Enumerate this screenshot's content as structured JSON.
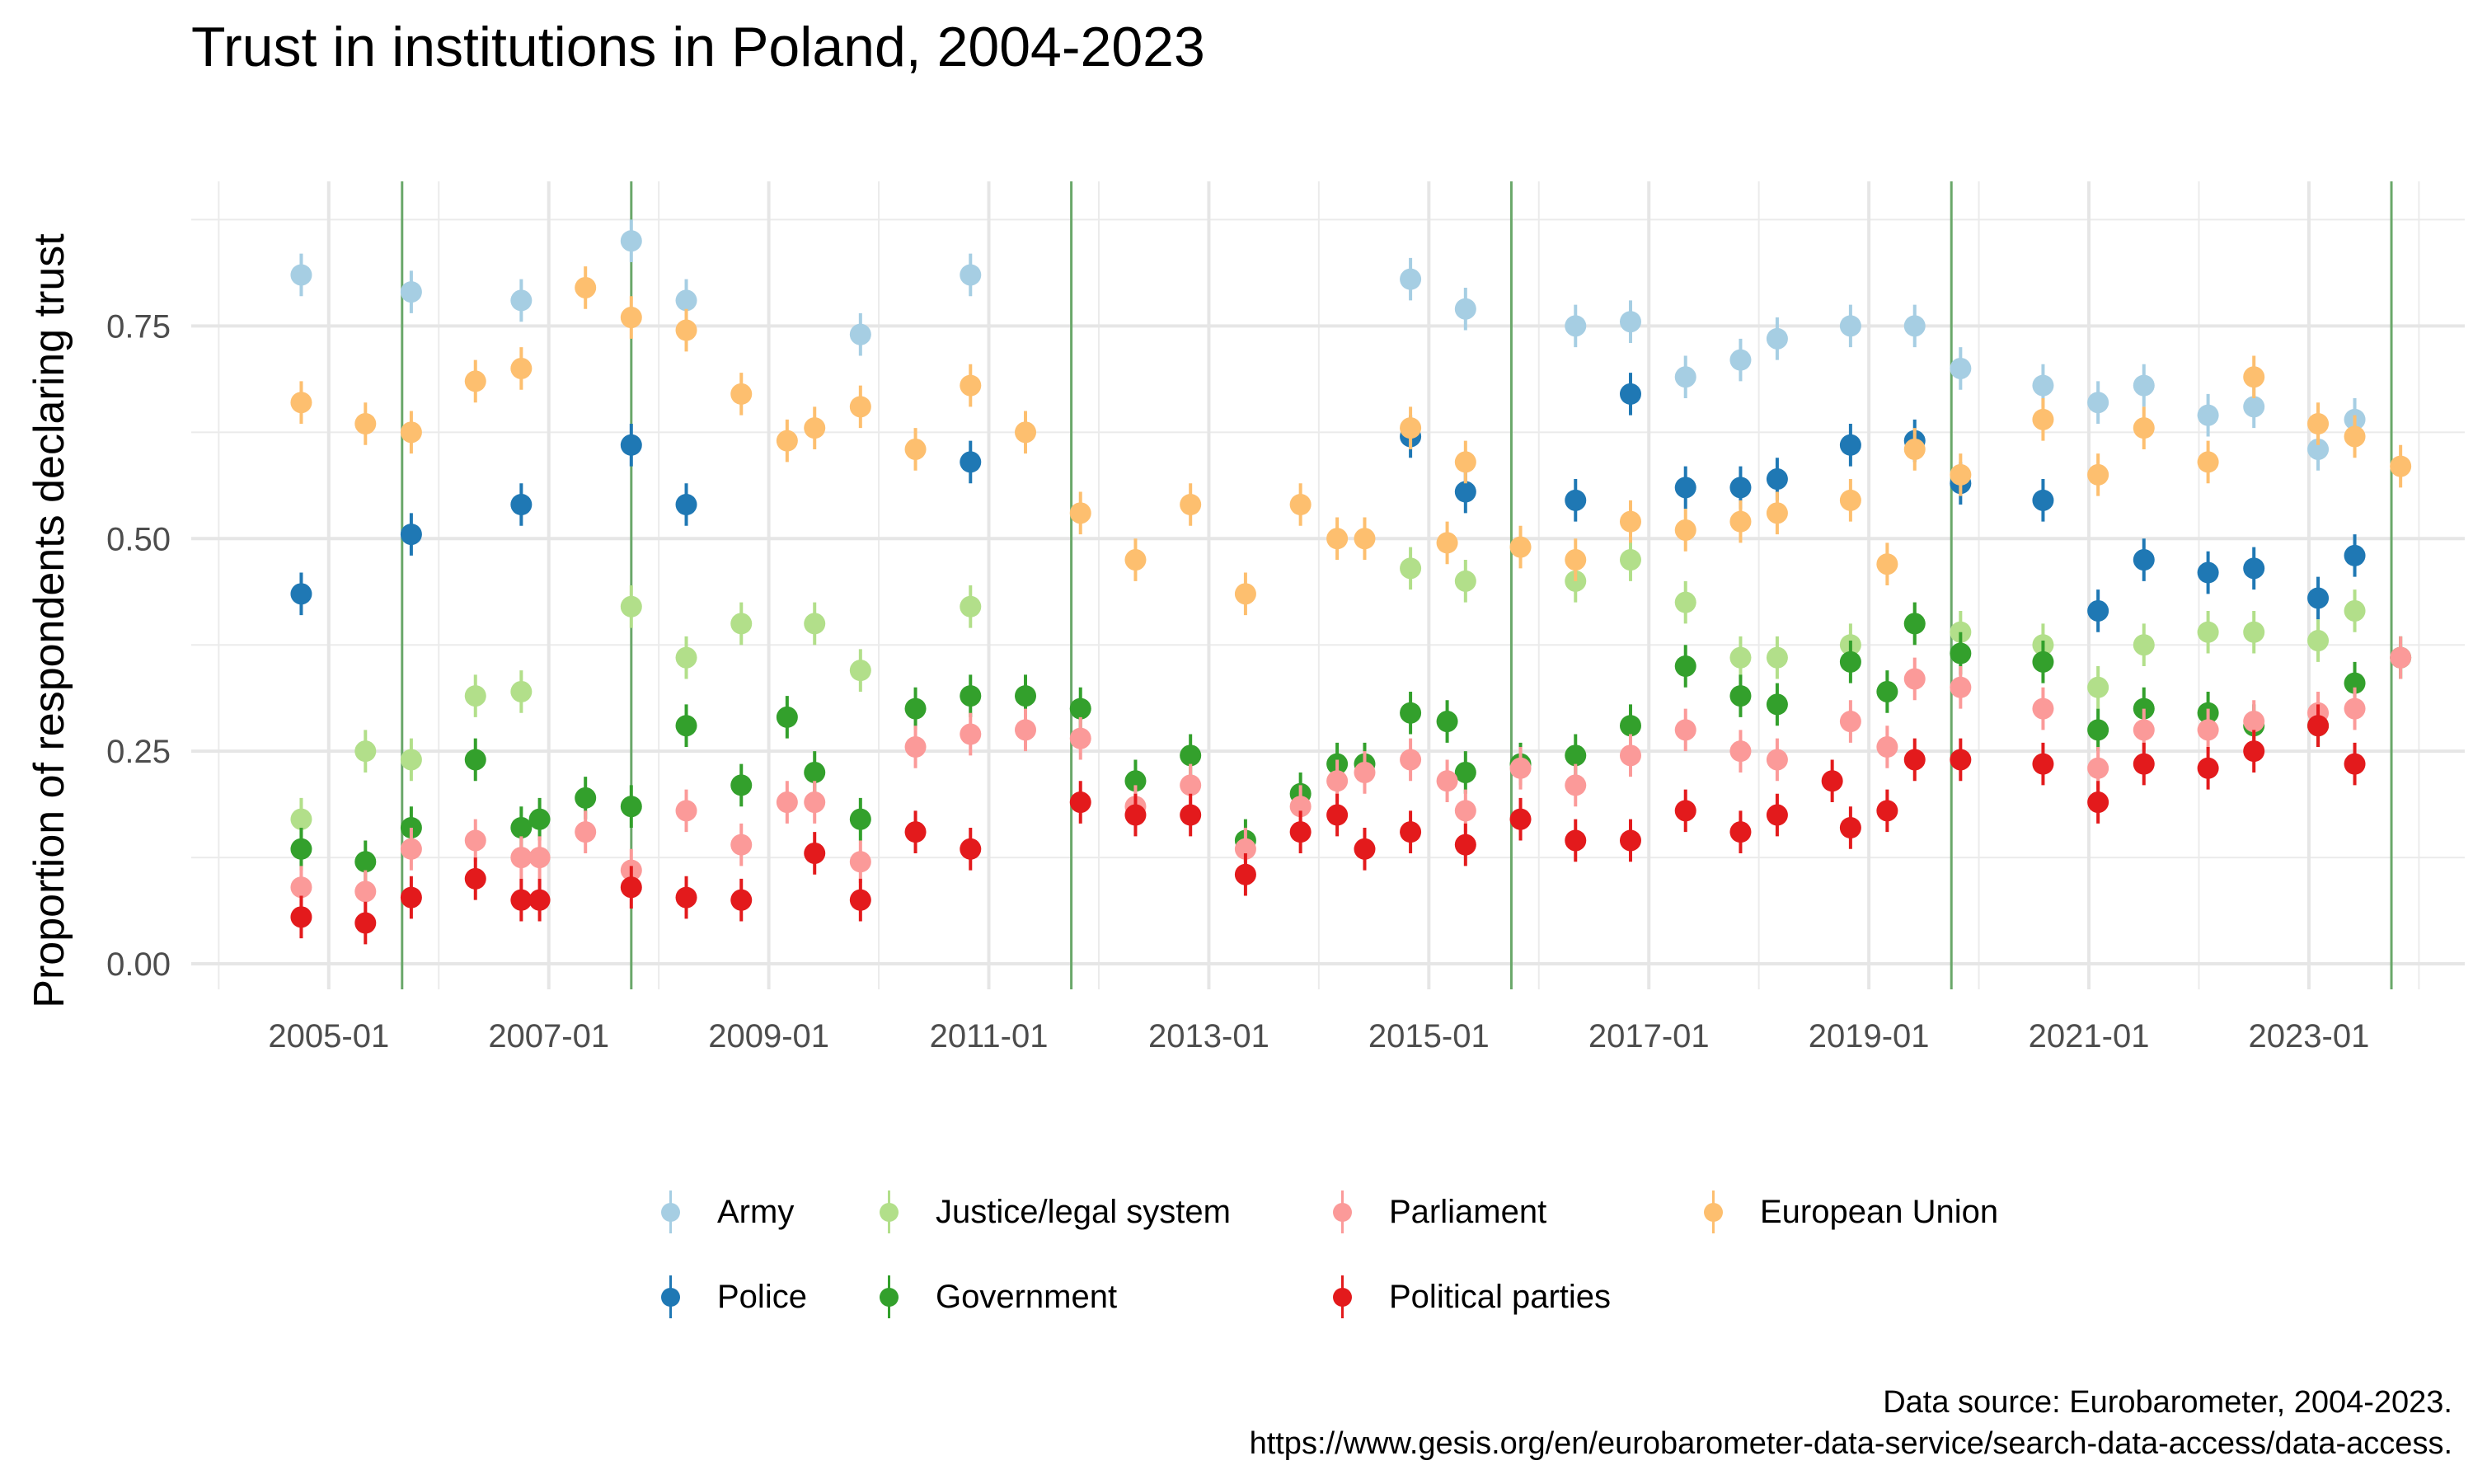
{
  "title": "Trust in institutions in Poland, 2004-2023",
  "caption": {
    "line1": "Data source: Eurobarometer, 2004-2023.",
    "line2": "https://www.gesis.org/en/eurobarometer-data-service/search-data-access/data-access."
  },
  "chart_data": {
    "type": "scatter",
    "title": "Trust in institutions in Poland, 2004-2023",
    "xlabel": "",
    "ylabel": "Proportion of respondents declaring trust",
    "x_ticks": [
      "2005-01",
      "2007-01",
      "2009-01",
      "2011-01",
      "2013-01",
      "2015-01",
      "2017-01",
      "2019-01",
      "2021-01",
      "2023-01"
    ],
    "y_ticks": [
      "0.00",
      "0.25",
      "0.50",
      "0.75"
    ],
    "ylim": [
      -0.03,
      0.92
    ],
    "xlim": [
      "2003-10",
      "2024-06"
    ],
    "grid": true,
    "legend_position": "bottom",
    "error_bars": "vertical, approx. ±0.025",
    "vertical_lines": [
      "2005-09",
      "2007-10",
      "2011-10",
      "2015-10",
      "2019-10",
      "2023-10"
    ],
    "series": [
      {
        "name": "Army",
        "color": "#a6cee3",
        "points": [
          [
            "2004-10",
            0.81
          ],
          [
            "2005-10",
            0.79
          ],
          [
            "2006-10",
            0.78
          ],
          [
            "2007-10",
            0.85
          ],
          [
            "2008-04",
            0.78
          ],
          [
            "2009-11",
            0.74
          ],
          [
            "2010-11",
            0.81
          ],
          [
            "2014-11",
            0.805
          ],
          [
            "2015-05",
            0.77
          ],
          [
            "2016-05",
            0.75
          ],
          [
            "2016-11",
            0.755
          ],
          [
            "2017-05",
            0.69
          ],
          [
            "2017-11",
            0.71
          ],
          [
            "2018-03",
            0.735
          ],
          [
            "2018-11",
            0.75
          ],
          [
            "2019-06",
            0.75
          ],
          [
            "2019-11",
            0.7
          ],
          [
            "2020-08",
            0.68
          ],
          [
            "2021-02",
            0.66
          ],
          [
            "2021-07",
            0.68
          ],
          [
            "2022-02",
            0.645
          ],
          [
            "2022-07",
            0.655
          ],
          [
            "2023-02",
            0.605
          ],
          [
            "2023-06",
            0.64
          ]
        ]
      },
      {
        "name": "Police",
        "color": "#1f78b4",
        "points": [
          [
            "2004-10",
            0.435
          ],
          [
            "2005-10",
            0.505
          ],
          [
            "2006-10",
            0.54
          ],
          [
            "2007-10",
            0.61
          ],
          [
            "2008-04",
            0.54
          ],
          [
            "2010-11",
            0.59
          ],
          [
            "2014-11",
            0.62
          ],
          [
            "2015-05",
            0.555
          ],
          [
            "2016-05",
            0.545
          ],
          [
            "2016-11",
            0.67
          ],
          [
            "2017-05",
            0.56
          ],
          [
            "2017-11",
            0.56
          ],
          [
            "2018-03",
            0.57
          ],
          [
            "2018-11",
            0.61
          ],
          [
            "2019-06",
            0.615
          ],
          [
            "2019-11",
            0.565
          ],
          [
            "2020-08",
            0.545
          ],
          [
            "2021-02",
            0.415
          ],
          [
            "2021-07",
            0.475
          ],
          [
            "2022-02",
            0.46
          ],
          [
            "2022-07",
            0.465
          ],
          [
            "2023-02",
            0.43
          ],
          [
            "2023-06",
            0.48
          ]
        ]
      },
      {
        "name": "Justice/legal system",
        "color": "#b2df8a",
        "points": [
          [
            "2004-10",
            0.17
          ],
          [
            "2005-05",
            0.25
          ],
          [
            "2005-10",
            0.24
          ],
          [
            "2006-05",
            0.315
          ],
          [
            "2006-10",
            0.32
          ],
          [
            "2007-10",
            0.42
          ],
          [
            "2008-04",
            0.36
          ],
          [
            "2008-10",
            0.4
          ],
          [
            "2009-06",
            0.4
          ],
          [
            "2009-11",
            0.345
          ],
          [
            "2010-11",
            0.42
          ],
          [
            "2014-11",
            0.465
          ],
          [
            "2015-05",
            0.45
          ],
          [
            "2016-05",
            0.45
          ],
          [
            "2016-11",
            0.475
          ],
          [
            "2017-05",
            0.425
          ],
          [
            "2017-11",
            0.36
          ],
          [
            "2018-03",
            0.36
          ],
          [
            "2018-11",
            0.375
          ],
          [
            "2019-06",
            0.4
          ],
          [
            "2019-11",
            0.39
          ],
          [
            "2020-08",
            0.375
          ],
          [
            "2021-02",
            0.325
          ],
          [
            "2021-07",
            0.375
          ],
          [
            "2022-02",
            0.39
          ],
          [
            "2022-07",
            0.39
          ],
          [
            "2023-02",
            0.38
          ],
          [
            "2023-06",
            0.415
          ]
        ]
      },
      {
        "name": "Government",
        "color": "#33a02c",
        "points": [
          [
            "2004-10",
            0.135
          ],
          [
            "2005-05",
            0.12
          ],
          [
            "2005-10",
            0.16
          ],
          [
            "2006-05",
            0.24
          ],
          [
            "2006-10",
            0.16
          ],
          [
            "2006-12",
            0.17
          ],
          [
            "2007-05",
            0.195
          ],
          [
            "2007-10",
            0.185
          ],
          [
            "2008-04",
            0.28
          ],
          [
            "2008-10",
            0.21
          ],
          [
            "2009-03",
            0.29
          ],
          [
            "2009-06",
            0.225
          ],
          [
            "2009-11",
            0.17
          ],
          [
            "2010-05",
            0.3
          ],
          [
            "2010-11",
            0.315
          ],
          [
            "2011-05",
            0.315
          ],
          [
            "2011-11",
            0.3
          ],
          [
            "2012-05",
            0.215
          ],
          [
            "2012-11",
            0.245
          ],
          [
            "2013-05",
            0.145
          ],
          [
            "2013-11",
            0.2
          ],
          [
            "2014-03",
            0.235
          ],
          [
            "2014-06",
            0.235
          ],
          [
            "2014-11",
            0.295
          ],
          [
            "2015-03",
            0.285
          ],
          [
            "2015-05",
            0.225
          ],
          [
            "2015-11",
            0.235
          ],
          [
            "2016-05",
            0.245
          ],
          [
            "2016-11",
            0.28
          ],
          [
            "2017-05",
            0.35
          ],
          [
            "2017-11",
            0.315
          ],
          [
            "2018-03",
            0.305
          ],
          [
            "2018-11",
            0.355
          ],
          [
            "2019-03",
            0.32
          ],
          [
            "2019-06",
            0.4
          ],
          [
            "2019-11",
            0.365
          ],
          [
            "2020-08",
            0.355
          ],
          [
            "2021-02",
            0.275
          ],
          [
            "2021-07",
            0.3
          ],
          [
            "2022-02",
            0.295
          ],
          [
            "2022-07",
            0.28
          ],
          [
            "2023-02",
            0.28
          ],
          [
            "2023-06",
            0.33
          ],
          [
            "2023-11",
            0.36
          ]
        ]
      },
      {
        "name": "Parliament",
        "color": "#fb9a99",
        "points": [
          [
            "2004-10",
            0.09
          ],
          [
            "2005-05",
            0.085
          ],
          [
            "2005-10",
            0.135
          ],
          [
            "2006-05",
            0.145
          ],
          [
            "2006-10",
            0.125
          ],
          [
            "2006-12",
            0.125
          ],
          [
            "2007-05",
            0.155
          ],
          [
            "2007-10",
            0.11
          ],
          [
            "2008-04",
            0.18
          ],
          [
            "2008-10",
            0.14
          ],
          [
            "2009-03",
            0.19
          ],
          [
            "2009-06",
            0.19
          ],
          [
            "2009-11",
            0.12
          ],
          [
            "2010-05",
            0.255
          ],
          [
            "2010-11",
            0.27
          ],
          [
            "2011-05",
            0.275
          ],
          [
            "2011-11",
            0.265
          ],
          [
            "2012-05",
            0.185
          ],
          [
            "2012-11",
            0.21
          ],
          [
            "2013-05",
            0.135
          ],
          [
            "2013-11",
            0.185
          ],
          [
            "2014-03",
            0.215
          ],
          [
            "2014-06",
            0.225
          ],
          [
            "2014-11",
            0.24
          ],
          [
            "2015-03",
            0.215
          ],
          [
            "2015-05",
            0.18
          ],
          [
            "2015-11",
            0.23
          ],
          [
            "2016-05",
            0.21
          ],
          [
            "2016-11",
            0.245
          ],
          [
            "2017-05",
            0.275
          ],
          [
            "2017-11",
            0.25
          ],
          [
            "2018-03",
            0.24
          ],
          [
            "2018-11",
            0.285
          ],
          [
            "2019-03",
            0.255
          ],
          [
            "2019-06",
            0.335
          ],
          [
            "2019-11",
            0.325
          ],
          [
            "2020-08",
            0.3
          ],
          [
            "2021-02",
            0.23
          ],
          [
            "2021-07",
            0.275
          ],
          [
            "2022-02",
            0.275
          ],
          [
            "2022-07",
            0.285
          ],
          [
            "2023-02",
            0.295
          ],
          [
            "2023-06",
            0.3
          ],
          [
            "2023-11",
            0.36
          ]
        ]
      },
      {
        "name": "Political parties",
        "color": "#e31a1c",
        "points": [
          [
            "2004-10",
            0.055
          ],
          [
            "2005-05",
            0.048
          ],
          [
            "2005-10",
            0.078
          ],
          [
            "2006-05",
            0.1
          ],
          [
            "2006-10",
            0.075
          ],
          [
            "2006-12",
            0.075
          ],
          [
            "2007-10",
            0.09
          ],
          [
            "2008-04",
            0.078
          ],
          [
            "2008-10",
            0.075
          ],
          [
            "2009-06",
            0.13
          ],
          [
            "2009-11",
            0.075
          ],
          [
            "2010-05",
            0.155
          ],
          [
            "2010-11",
            0.135
          ],
          [
            "2011-11",
            0.19
          ],
          [
            "2012-05",
            0.175
          ],
          [
            "2012-11",
            0.175
          ],
          [
            "2013-05",
            0.105
          ],
          [
            "2013-11",
            0.155
          ],
          [
            "2014-03",
            0.175
          ],
          [
            "2014-06",
            0.135
          ],
          [
            "2014-11",
            0.155
          ],
          [
            "2015-05",
            0.14
          ],
          [
            "2015-11",
            0.17
          ],
          [
            "2016-05",
            0.145
          ],
          [
            "2016-11",
            0.145
          ],
          [
            "2017-05",
            0.18
          ],
          [
            "2017-11",
            0.155
          ],
          [
            "2018-03",
            0.175
          ],
          [
            "2018-09",
            0.215
          ],
          [
            "2018-11",
            0.16
          ],
          [
            "2019-03",
            0.18
          ],
          [
            "2019-06",
            0.24
          ],
          [
            "2019-11",
            0.24
          ],
          [
            "2020-08",
            0.235
          ],
          [
            "2021-02",
            0.19
          ],
          [
            "2021-07",
            0.235
          ],
          [
            "2022-02",
            0.23
          ],
          [
            "2022-07",
            0.25
          ],
          [
            "2023-02",
            0.28
          ],
          [
            "2023-06",
            0.235
          ]
        ]
      },
      {
        "name": "European Union",
        "color": "#fdbf6f",
        "points": [
          [
            "2004-10",
            0.66
          ],
          [
            "2005-05",
            0.635
          ],
          [
            "2005-10",
            0.625
          ],
          [
            "2006-05",
            0.685
          ],
          [
            "2006-10",
            0.7
          ],
          [
            "2007-05",
            0.795
          ],
          [
            "2007-10",
            0.76
          ],
          [
            "2008-04",
            0.745
          ],
          [
            "2008-10",
            0.67
          ],
          [
            "2009-03",
            0.615
          ],
          [
            "2009-06",
            0.63
          ],
          [
            "2009-11",
            0.655
          ],
          [
            "2010-05",
            0.605
          ],
          [
            "2010-11",
            0.68
          ],
          [
            "2011-05",
            0.625
          ],
          [
            "2011-11",
            0.53
          ],
          [
            "2012-05",
            0.475
          ],
          [
            "2012-11",
            0.54
          ],
          [
            "2013-05",
            0.435
          ],
          [
            "2013-11",
            0.54
          ],
          [
            "2014-03",
            0.5
          ],
          [
            "2014-06",
            0.5
          ],
          [
            "2014-11",
            0.63
          ],
          [
            "2015-03",
            0.495
          ],
          [
            "2015-05",
            0.59
          ],
          [
            "2015-11",
            0.49
          ],
          [
            "2016-05",
            0.475
          ],
          [
            "2016-11",
            0.52
          ],
          [
            "2017-05",
            0.51
          ],
          [
            "2017-11",
            0.52
          ],
          [
            "2018-03",
            0.53
          ],
          [
            "2018-11",
            0.545
          ],
          [
            "2019-03",
            0.47
          ],
          [
            "2019-06",
            0.605
          ],
          [
            "2019-11",
            0.575
          ],
          [
            "2020-08",
            0.64
          ],
          [
            "2021-02",
            0.575
          ],
          [
            "2021-07",
            0.63
          ],
          [
            "2022-02",
            0.59
          ],
          [
            "2022-07",
            0.69
          ],
          [
            "2023-02",
            0.635
          ],
          [
            "2023-06",
            0.62
          ],
          [
            "2023-11",
            0.585
          ]
        ]
      }
    ]
  }
}
